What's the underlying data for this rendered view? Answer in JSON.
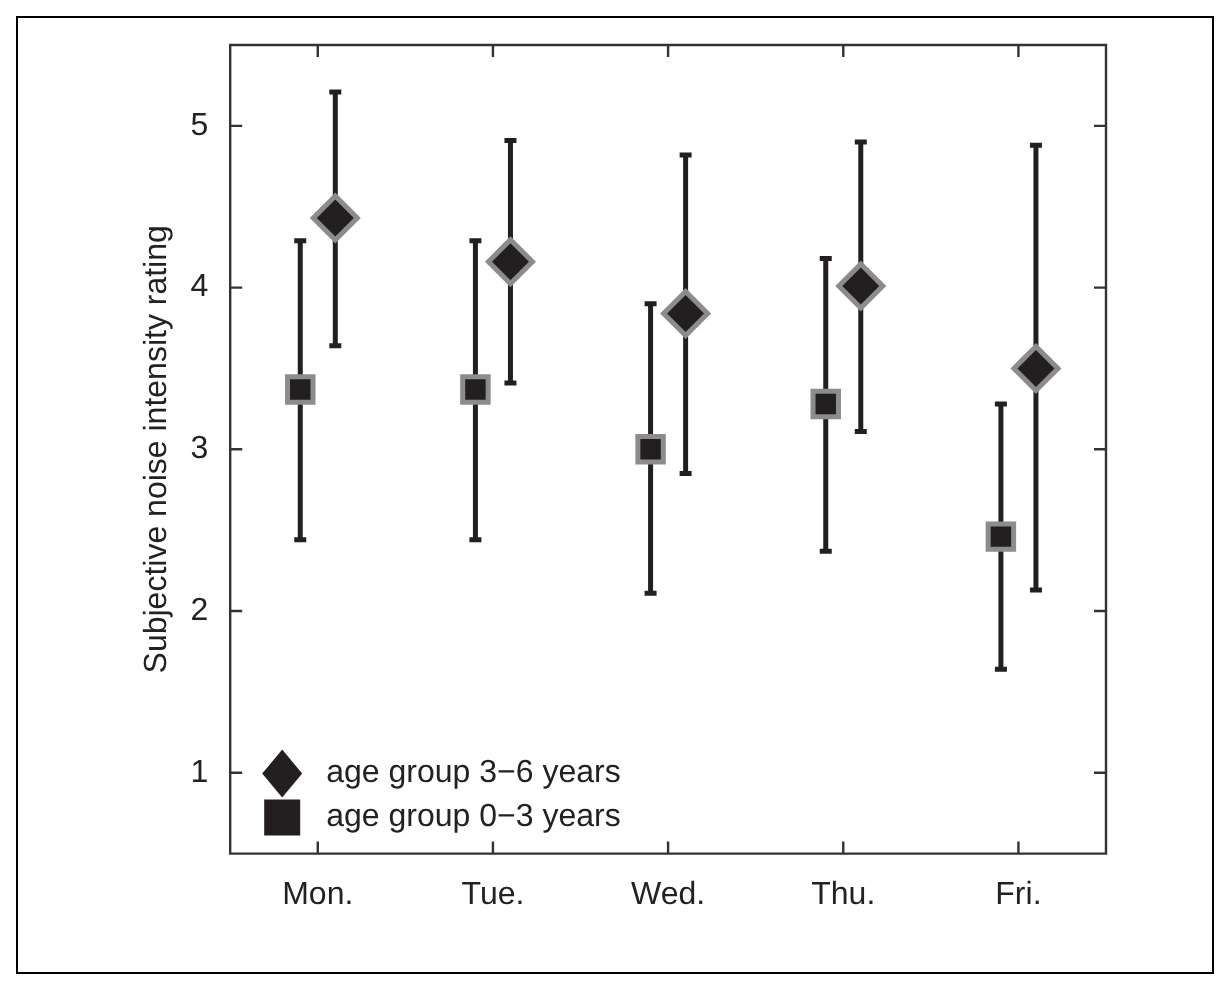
{
  "chart_data": {
    "type": "scatter",
    "ylabel": "Subjective noise intensity rating",
    "categories": [
      "Mon.",
      "Tue.",
      "Wed.",
      "Thu.",
      "Fri."
    ],
    "ylim": [
      0.5,
      5.5
    ],
    "yticks": [
      1,
      2,
      3,
      4,
      5
    ],
    "legend": "bottom left",
    "series": [
      {
        "name": "age group 3−6 years",
        "color": "#231f20",
        "marker": "diamond",
        "values": [
          4.43,
          4.16,
          3.84,
          4.01,
          3.5
        ],
        "errors": [
          [
            3.64,
            5.21
          ],
          [
            3.41,
            4.91
          ],
          [
            2.85,
            4.82
          ],
          [
            3.11,
            4.9
          ],
          [
            2.13,
            4.88
          ]
        ]
      },
      {
        "name": "age group 0−3 years",
        "color": "#231f20",
        "marker": "square",
        "values": [
          3.37,
          3.37,
          3.0,
          3.28,
          2.46
        ],
        "errors": [
          [
            2.44,
            4.29
          ],
          [
            2.44,
            4.29
          ],
          [
            2.11,
            3.9
          ],
          [
            2.37,
            4.18
          ],
          [
            1.64,
            3.28
          ]
        ]
      }
    ]
  }
}
